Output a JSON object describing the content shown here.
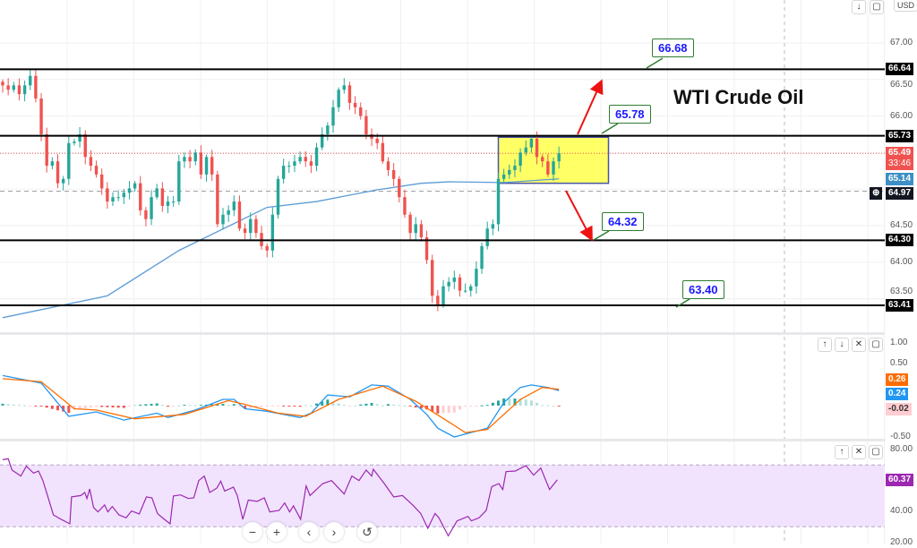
{
  "title": "WTI Crude Oil",
  "currency": "USD",
  "colors": {
    "up": "#26a69a",
    "down": "#ef5350",
    "ma": "#5b9bd5",
    "level": "#000000",
    "box_fill": "#ffff66",
    "box_border": "#4a55a2",
    "arrow": "#ee1111",
    "macd": "#2196f3",
    "signal": "#ff6d00",
    "rsi": "#9c27b0",
    "rsi_band": "#f1e3fd"
  },
  "price_axis": {
    "ticks": [
      "67.00",
      "66.50",
      "66.00",
      "64.50",
      "64.00",
      "63.50"
    ]
  },
  "price_badges": [
    {
      "label": "66.64",
      "kind": "level"
    },
    {
      "label": "65.73",
      "kind": "level"
    },
    {
      "label": "65.49",
      "sub": "33:46",
      "kind": "last"
    },
    {
      "label": "65.14",
      "kind": "ma"
    },
    {
      "label": "64.97",
      "kind": "crosshair"
    },
    {
      "label": "64.30",
      "kind": "level"
    },
    {
      "label": "63.41",
      "kind": "level"
    }
  ],
  "callouts": [
    "66.68",
    "65.78",
    "64.32",
    "63.40"
  ],
  "macd_axis": {
    "ticks": [
      "1.00",
      "0.50",
      "-0.50"
    ],
    "badges": [
      "0.26",
      "0.24",
      "-0.02"
    ]
  },
  "rsi_axis": {
    "ticks": [
      "80.00",
      "40.00",
      "20.00"
    ],
    "badges": [
      "60.37"
    ]
  },
  "icons": {
    "pane_up": "arrow-up-icon",
    "pane_down": "arrow-down-icon",
    "close": "close-icon",
    "maximize": "maximize-icon",
    "zoom_out": "minus-icon",
    "zoom_in": "plus-icon",
    "scroll_left": "chevron-left-icon",
    "scroll_right": "chevron-right-icon",
    "reset": "reset-icon"
  },
  "chart_data": [
    {
      "type": "candlestick",
      "title": "WTI Crude Oil",
      "ylim": [
        63.0,
        67.3
      ],
      "grid": true,
      "closes": [
        66.42,
        66.36,
        66.42,
        66.3,
        66.42,
        66.55,
        66.24,
        65.75,
        65.32,
        65.38,
        65.08,
        65.14,
        65.63,
        65.65,
        65.75,
        65.44,
        65.32,
        65.2,
        65.01,
        64.83,
        64.89,
        64.89,
        64.95,
        65.01,
        65.08,
        64.71,
        64.59,
        64.89,
        65.01,
        64.77,
        64.83,
        64.83,
        65.38,
        65.44,
        65.38,
        65.5,
        65.2,
        65.44,
        65.2,
        64.52,
        64.65,
        64.71,
        64.83,
        64.46,
        64.4,
        64.59,
        64.4,
        64.22,
        64.16,
        64.65,
        65.14,
        65.32,
        65.32,
        65.38,
        65.44,
        65.38,
        65.32,
        65.57,
        65.75,
        65.87,
        66.12,
        66.36,
        66.42,
        66.18,
        66.12,
        66.0,
        65.75,
        65.69,
        65.63,
        65.38,
        65.26,
        65.14,
        64.89,
        64.65,
        64.4,
        64.52,
        64.34,
        64.03,
        63.54,
        63.42,
        63.67,
        63.73,
        63.79,
        63.61,
        63.61,
        63.67,
        63.91,
        64.22,
        64.46,
        64.52,
        65.14,
        65.2,
        65.26,
        65.32,
        65.5,
        65.57,
        65.69,
        65.44,
        65.38,
        65.2,
        65.38,
        65.49
      ],
      "moving_average": [
        [
          0,
          63.24
        ],
        [
          19,
          63.54
        ],
        [
          32,
          64.16
        ],
        [
          48,
          64.75
        ],
        [
          57,
          64.83
        ],
        [
          68,
          64.99
        ],
        [
          76,
          65.08
        ],
        [
          81,
          65.1
        ],
        [
          91,
          65.09
        ],
        [
          101,
          65.14
        ]
      ],
      "levels": [
        66.64,
        65.73,
        64.3,
        63.41
      ],
      "level_labels": [
        66.68,
        65.78,
        64.32,
        63.4
      ],
      "last_price": 65.49,
      "crosshair_price": 64.97,
      "range_box": {
        "from_bar": 90,
        "to_bar": 110,
        "top": 65.71,
        "bottom": 65.08
      }
    },
    {
      "type": "line",
      "name": "MACD",
      "ylim": [
        -0.6,
        1.1
      ],
      "macd": [
        [
          0,
          0.48
        ],
        [
          7,
          0.36
        ],
        [
          12,
          -0.17
        ],
        [
          17,
          -0.1
        ],
        [
          22,
          -0.23
        ],
        [
          28,
          -0.12
        ],
        [
          30,
          -0.19
        ],
        [
          35,
          -0.07
        ],
        [
          40,
          0.1
        ],
        [
          42,
          0.1
        ],
        [
          44,
          -0.05
        ],
        [
          48,
          -0.09
        ],
        [
          54,
          -0.19
        ],
        [
          56,
          -0.12
        ],
        [
          59,
          0.17
        ],
        [
          63,
          0.14
        ],
        [
          67,
          0.33
        ],
        [
          70,
          0.31
        ],
        [
          74,
          0.1
        ],
        [
          77,
          -0.14
        ],
        [
          79,
          -0.36
        ],
        [
          82,
          -0.5
        ],
        [
          85,
          -0.43
        ],
        [
          88,
          -0.36
        ],
        [
          91,
          0.05
        ],
        [
          94,
          0.29
        ],
        [
          96,
          0.33
        ],
        [
          99,
          0.29
        ],
        [
          101,
          0.24
        ]
      ],
      "signal": [
        [
          0,
          0.43
        ],
        [
          7,
          0.38
        ],
        [
          13,
          -0.05
        ],
        [
          17,
          -0.07
        ],
        [
          24,
          -0.21
        ],
        [
          33,
          -0.14
        ],
        [
          41,
          0.08
        ],
        [
          44,
          0.02
        ],
        [
          50,
          -0.12
        ],
        [
          55,
          -0.17
        ],
        [
          61,
          0.1
        ],
        [
          69,
          0.31
        ],
        [
          75,
          0.07
        ],
        [
          81,
          -0.26
        ],
        [
          84,
          -0.43
        ],
        [
          88,
          -0.38
        ],
        [
          94,
          0.1
        ],
        [
          98,
          0.29
        ],
        [
          101,
          0.26
        ]
      ],
      "last": {
        "signal": 0.26,
        "macd": 0.24,
        "histogram": -0.02
      }
    },
    {
      "type": "line",
      "name": "RSI",
      "ylim": [
        18,
        85
      ],
      "band": [
        30,
        70
      ],
      "values": [
        [
          0,
          73.4
        ],
        [
          1,
          74.0
        ],
        [
          1.7,
          66.7
        ],
        [
          3.3,
          62.8
        ],
        [
          4.3,
          69.2
        ],
        [
          5.6,
          64.7
        ],
        [
          6.5,
          66.1
        ],
        [
          7.3,
          59.9
        ],
        [
          8.3,
          48.3
        ],
        [
          9.2,
          37.7
        ],
        [
          10.6,
          34.8
        ],
        [
          12.2,
          31.9
        ],
        [
          12.5,
          49.3
        ],
        [
          14.2,
          50.2
        ],
        [
          14.9,
          52.2
        ],
        [
          15.3,
          48.3
        ],
        [
          15.8,
          54.5
        ],
        [
          16.5,
          42.5
        ],
        [
          17.3,
          39.6
        ],
        [
          18.5,
          44.1
        ],
        [
          19.1,
          39.6
        ],
        [
          19.9,
          43.1
        ],
        [
          21.1,
          37.7
        ],
        [
          22.4,
          35.8
        ],
        [
          23.4,
          40.2
        ],
        [
          24.8,
          38.3
        ],
        [
          26.1,
          49.3
        ],
        [
          27.1,
          48.7
        ],
        [
          28.1,
          38.6
        ],
        [
          29,
          35.8
        ],
        [
          30.4,
          31.9
        ],
        [
          31,
          49.9
        ],
        [
          32.3,
          50.6
        ],
        [
          33.7,
          48.3
        ],
        [
          34.7,
          48.7
        ],
        [
          35.6,
          59.9
        ],
        [
          36.6,
          62.8
        ],
        [
          37.6,
          52.2
        ],
        [
          38.9,
          55.1
        ],
        [
          39.6,
          59.5
        ],
        [
          40.3,
          53.1
        ],
        [
          41.9,
          55.6
        ],
        [
          42.6,
          50.2
        ],
        [
          43.6,
          34.8
        ],
        [
          44.6,
          47.3
        ],
        [
          46.2,
          46.4
        ],
        [
          47.5,
          48.7
        ],
        [
          48.5,
          39.6
        ],
        [
          50.2,
          40.6
        ],
        [
          51.2,
          45.4
        ],
        [
          52.1,
          39.6
        ],
        [
          52.8,
          43.5
        ],
        [
          54.1,
          34.8
        ],
        [
          55.1,
          56.4
        ],
        [
          55.8,
          50.2
        ],
        [
          58.1,
          57.9
        ],
        [
          59.7,
          59.9
        ],
        [
          62,
          51.2
        ],
        [
          63.4,
          62.8
        ],
        [
          64.7,
          59.9
        ],
        [
          66,
          66.7
        ],
        [
          67,
          62.8
        ],
        [
          67.3,
          67.2
        ],
        [
          69.3,
          57.9
        ],
        [
          71,
          49.3
        ],
        [
          72.6,
          50.2
        ],
        [
          74.6,
          43.5
        ],
        [
          75.9,
          38.6
        ],
        [
          77.2,
          29.0
        ],
        [
          78.5,
          38.6
        ],
        [
          79.2,
          35.8
        ],
        [
          80.9,
          24.1
        ],
        [
          82.5,
          33.8
        ],
        [
          84.5,
          36.7
        ],
        [
          85.1,
          33.8
        ],
        [
          86.5,
          35.8
        ],
        [
          87.8,
          40.6
        ],
        [
          88.8,
          56.0
        ],
        [
          90.1,
          57.9
        ],
        [
          90.8,
          54.1
        ],
        [
          91.4,
          65.7
        ],
        [
          93.1,
          66.1
        ],
        [
          95,
          69.6
        ],
        [
          96.4,
          63.4
        ],
        [
          97.7,
          68.0
        ],
        [
          99.3,
          54.1
        ],
        [
          100.7,
          60.37
        ]
      ],
      "last": 60.37
    }
  ]
}
